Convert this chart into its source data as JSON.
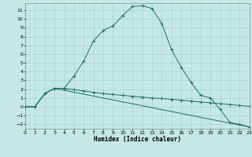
{
  "xlabel": "Humidex (Indice chaleur)",
  "bg_color": "#c5e8e5",
  "grid_color": "#9ecece",
  "line_color": "#1a6e62",
  "xlim": [
    0,
    23
  ],
  "ylim": [
    -2.5,
    11.8
  ],
  "xticks": [
    0,
    1,
    2,
    3,
    4,
    5,
    6,
    7,
    8,
    9,
    10,
    11,
    12,
    13,
    14,
    15,
    16,
    17,
    18,
    19,
    20,
    21,
    22,
    23
  ],
  "yticks": [
    -2,
    -1,
    0,
    1,
    2,
    3,
    4,
    5,
    6,
    7,
    8,
    9,
    10,
    11
  ],
  "series1_x": [
    0,
    1,
    2,
    3,
    4,
    5,
    6,
    7,
    8,
    9,
    10,
    11,
    12,
    13,
    14,
    15,
    16,
    17,
    18,
    19,
    20,
    21,
    22,
    23
  ],
  "series1_y": [
    0,
    0,
    1.5,
    2.1,
    2.1,
    3.5,
    5.2,
    7.5,
    8.7,
    9.2,
    10.4,
    11.4,
    11.5,
    11.2,
    9.5,
    6.5,
    4.5,
    2.8,
    1.3,
    1.0,
    -0.3,
    -1.8,
    -2.0,
    -2.3
  ],
  "series2_x": [
    0,
    1,
    2,
    3,
    4,
    5,
    6,
    7,
    8,
    9,
    10,
    11,
    12,
    13,
    14,
    15,
    16,
    17,
    18,
    19,
    20,
    21,
    22,
    23
  ],
  "series2_y": [
    0,
    0,
    1.5,
    2.1,
    2.1,
    1.95,
    1.8,
    1.65,
    1.5,
    1.4,
    1.3,
    1.2,
    1.1,
    1.0,
    0.95,
    0.85,
    0.75,
    0.65,
    0.55,
    0.45,
    0.35,
    0.25,
    0.15,
    0.05
  ],
  "series3_x": [
    0,
    1,
    2,
    3,
    23
  ],
  "series3_y": [
    0,
    0,
    1.5,
    2.1,
    -2.3
  ]
}
